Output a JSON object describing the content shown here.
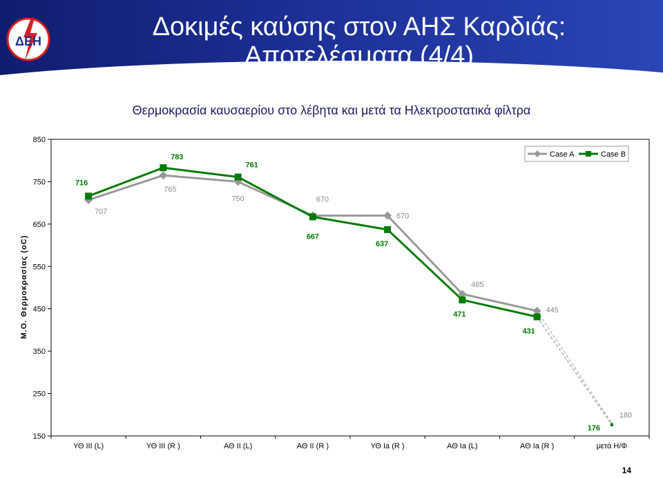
{
  "slide": {
    "title_line1": "Δοκιμές καύσης στον ΑΗΣ Καρδιάς:",
    "title_line2": "Αποτελέσματα (4/4)",
    "logo_text": "ΔΕΗ",
    "page_number": "14",
    "colors": {
      "banner": "#1c2f95",
      "case_a": "#999999",
      "case_b": "#007a00"
    }
  },
  "chart_data": {
    "type": "line",
    "title": "Θερμοκρασία καυσαερίου στο λέβητα και μετά τα Ηλεκτροστατικά φίλτρα",
    "xlabel": "",
    "ylabel": "Μ.Ο. Θερμοκρασίας (oC)",
    "ylim": [
      150,
      850
    ],
    "yticks": [
      850,
      750,
      650,
      550,
      450,
      350,
      250,
      150
    ],
    "grid": false,
    "legend_position": "top-right",
    "categories": [
      "ΥΘ ΙΙΙ (L)",
      "ΥΘ ΙΙΙ (R )",
      "ΑΘ ΙΙ (L)",
      "ΑΘ ΙΙ (R )",
      "ΥΘ Ιa (R )",
      "ΑΘ Ιa (L)",
      "ΑΘ Ιa (R )",
      "μετά Η/Φ"
    ],
    "series": [
      {
        "name": "Case A",
        "color": "#999999",
        "marker": "diamond",
        "values": [
          707,
          765,
          750,
          670,
          670,
          485,
          445,
          180
        ],
        "labels": [
          "707",
          "765",
          "750",
          "670",
          "670",
          "485",
          "445",
          "180"
        ]
      },
      {
        "name": "Case B",
        "color": "#007a00",
        "marker": "square",
        "values": [
          716,
          783,
          761,
          667,
          637,
          471,
          431,
          176
        ],
        "labels": [
          "716",
          "783",
          "761",
          "667",
          "637",
          "471",
          "431",
          "176"
        ]
      }
    ]
  }
}
